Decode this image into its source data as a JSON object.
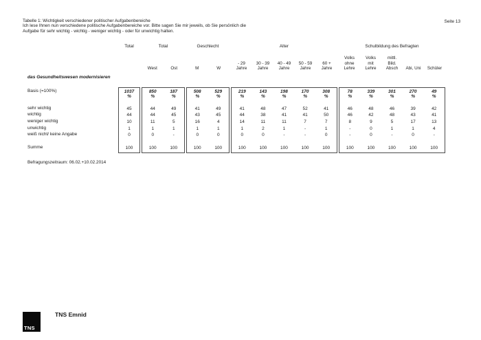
{
  "header": {
    "title_line1": "Tabelle 1: Wichtigkeit verschiedener politischer Aufgabenbereiche",
    "title_line2": "Ich lese Ihnen nun verschiedene politische Aufgabenbereiche vor. Bitte sagen Sie mir jeweils, ob Sie persönlich die",
    "title_line3": "Aufgabe für sehr wichtig - wichtig - weniger wichtig - oder für unwichtig halten.",
    "page_number": "Seite 13"
  },
  "table": {
    "question": "das Gesundheitswesen modernisieren",
    "basis_label": "Basis (=100%)",
    "percent_symbol": "%",
    "summe_label": "Summe",
    "groups": [
      {
        "header": "Total",
        "columns": [
          [
            ""
          ]
        ]
      },
      {
        "header": "Total",
        "columns": [
          [
            "West"
          ],
          [
            "Ost"
          ]
        ]
      },
      {
        "header": "Geschlecht",
        "columns": [
          [
            "M"
          ],
          [
            "W"
          ]
        ]
      },
      {
        "header": "Alter",
        "columns": [
          [
            "- 29",
            "Jahre"
          ],
          [
            "30 - 39",
            "Jahre"
          ],
          [
            "40 - 49",
            "Jahre"
          ],
          [
            "50 - 59",
            "Jahre"
          ],
          [
            "60 +",
            "Jahre"
          ]
        ]
      },
      {
        "header": "Schulbildung des Befragten",
        "columns": [
          [
            "Volks",
            "ohne",
            "Lehre"
          ],
          [
            "Volks",
            "mit",
            "Lehre"
          ],
          [
            "mittl.",
            "Bild.",
            "Absch"
          ],
          [
            "Abi, Uni"
          ],
          [
            "Schüler"
          ]
        ]
      }
    ],
    "basis_values": [
      "1037",
      "850",
      "187",
      "508",
      "529",
      "219",
      "143",
      "198",
      "170",
      "308",
      "78",
      "339",
      "301",
      "270",
      "49"
    ],
    "rows": [
      {
        "label": "sehr wichtig",
        "values": [
          "45",
          "44",
          "49",
          "41",
          "49",
          "41",
          "48",
          "47",
          "52",
          "41",
          "46",
          "48",
          "46",
          "39",
          "42"
        ]
      },
      {
        "label": "wichtig",
        "values": [
          "44",
          "44",
          "45",
          "43",
          "45",
          "44",
          "38",
          "41",
          "41",
          "50",
          "46",
          "42",
          "48",
          "43",
          "41"
        ]
      },
      {
        "label": "weniger wichtig",
        "values": [
          "10",
          "11",
          "5",
          "16",
          "4",
          "14",
          "11",
          "11",
          "7",
          "7",
          "8",
          "9",
          "5",
          "17",
          "13"
        ]
      },
      {
        "label": "unwichtig",
        "values": [
          "1",
          "1",
          "1",
          "1",
          "1",
          "1",
          "2",
          "1",
          "-",
          "1",
          "-",
          "0",
          "1",
          "1",
          "4"
        ]
      },
      {
        "label": "weiß nicht/ keine Angabe",
        "values": [
          "0",
          "0",
          "-",
          "0",
          "0",
          "0",
          "0",
          "-",
          "-",
          "0",
          "-",
          "0",
          "-",
          "0",
          "-"
        ]
      }
    ],
    "summe_values": [
      "100",
      "100",
      "100",
      "100",
      "100",
      "100",
      "100",
      "100",
      "100",
      "100",
      "100",
      "100",
      "100",
      "100",
      "100"
    ]
  },
  "footer": {
    "survey_period": "Befragungszeitraum: 06.02.+10.02.2014",
    "logo_text": "TNS",
    "brand": "TNS Emnid"
  }
}
